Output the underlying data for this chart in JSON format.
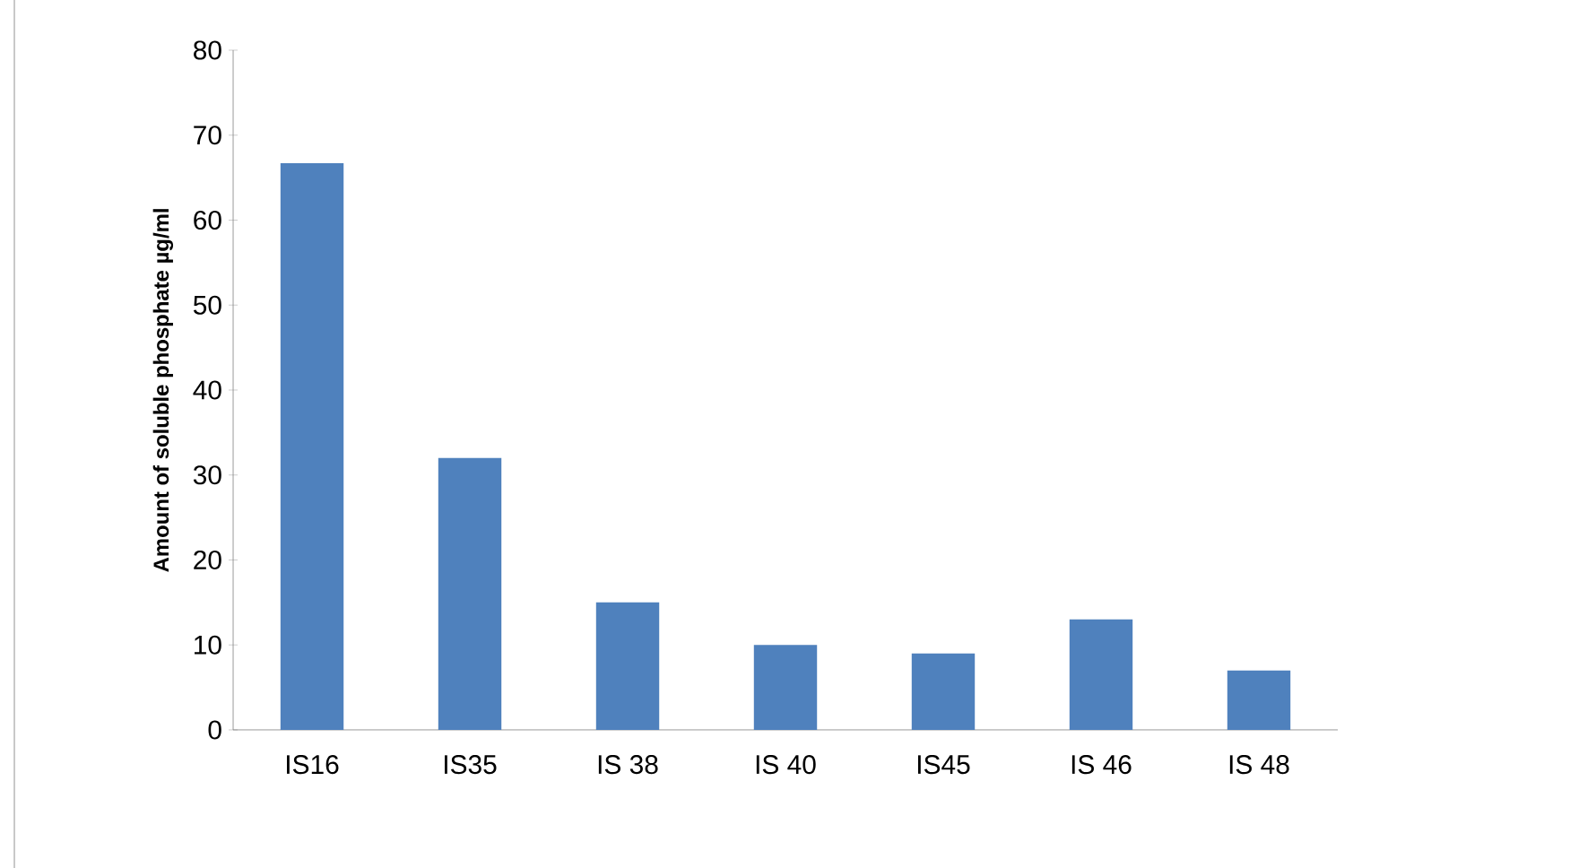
{
  "chart_data": {
    "type": "bar",
    "ylabel": "Amount of soluble phosphate µg/ml",
    "categories": [
      "IS16",
      "IS35",
      "IS 38",
      "IS 40",
      "IS45",
      "IS 46",
      "IS 48"
    ],
    "values": [
      66.7,
      32,
      15,
      10,
      9,
      13,
      7
    ],
    "color": "#4f81bd",
    "ylim": [
      0,
      80
    ],
    "yticks": [
      0,
      10,
      20,
      30,
      40,
      50,
      60,
      70,
      80
    ],
    "grid": false
  }
}
